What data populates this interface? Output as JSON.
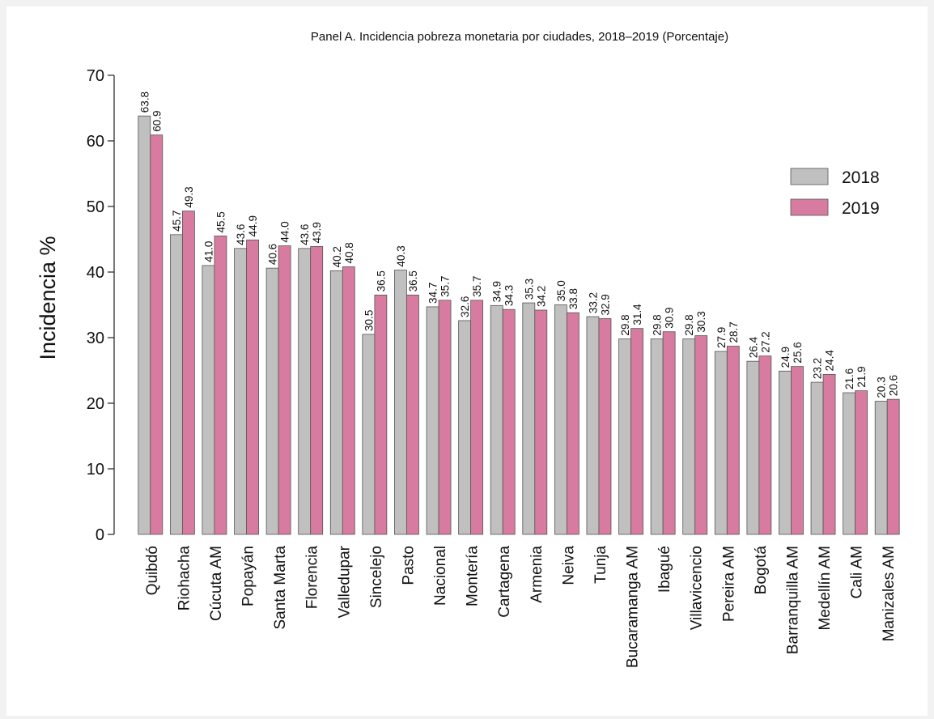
{
  "chart_data": {
    "type": "bar",
    "title": "Panel A. Incidencia pobreza monetaria por ciudades, 2018–2019 (Porcentaje)",
    "ylabel": "Incidencia %",
    "xlabel": "",
    "ylim": [
      0,
      70
    ],
    "yticks": [
      0,
      10,
      20,
      30,
      40,
      50,
      60,
      70
    ],
    "grid": false,
    "legend_position": "right",
    "categories": [
      "Quibdó",
      "Riohacha",
      "Cúcuta AM",
      "Popayán",
      "Santa Marta",
      "Florencia",
      "Valledupar",
      "Sincelejo",
      "Pasto",
      "Nacional",
      "Montería",
      "Cartagena",
      "Armenia",
      "Neiva",
      "Tunja",
      "Bucaramanga AM",
      "Ibagué",
      "Villavicencio",
      "Pereira AM",
      "Bogotá",
      "Barranquilla AM",
      "Medellín AM",
      "Cali AM",
      "Manizales AM"
    ],
    "series": [
      {
        "name": "2018",
        "color": "#c0c0c0",
        "values": [
          63.8,
          45.7,
          41.0,
          43.6,
          40.6,
          43.6,
          40.2,
          30.5,
          40.3,
          34.7,
          32.6,
          34.9,
          35.3,
          35.0,
          33.2,
          29.8,
          29.8,
          29.8,
          27.9,
          26.4,
          24.9,
          23.2,
          21.6,
          20.3
        ],
        "labels": [
          "63.8",
          "45.7",
          "41.0",
          "43.6",
          "40.6",
          "43.6",
          "40.2",
          "30.5",
          "40.3",
          "34.7",
          "32.6",
          "34.9",
          "35.3",
          "35.0",
          "33.2",
          "29.8",
          "29.8",
          "29.8",
          "27.9",
          "26.4",
          "24.9",
          "23.2",
          "21.6",
          "20.3"
        ]
      },
      {
        "name": "2019",
        "color": "#d87ba0",
        "values": [
          60.9,
          49.3,
          45.5,
          44.9,
          44.0,
          43.9,
          40.8,
          36.5,
          36.5,
          35.7,
          35.7,
          34.3,
          34.2,
          33.8,
          32.9,
          31.4,
          30.9,
          30.3,
          28.7,
          27.2,
          25.6,
          24.4,
          21.9,
          20.6
        ],
        "labels": [
          "60.9",
          "49.3",
          "45.5",
          "44.9",
          "44.0",
          "43.9",
          "40.8",
          "36.5",
          "36.5",
          "35.7",
          "35.7",
          "34.3",
          "34.2",
          "33.8",
          "32.9",
          "31.4",
          "30.9",
          "30.3",
          "28.7",
          "27.2",
          "25.6",
          "24.4",
          "21.9",
          "20.6"
        ]
      }
    ]
  }
}
